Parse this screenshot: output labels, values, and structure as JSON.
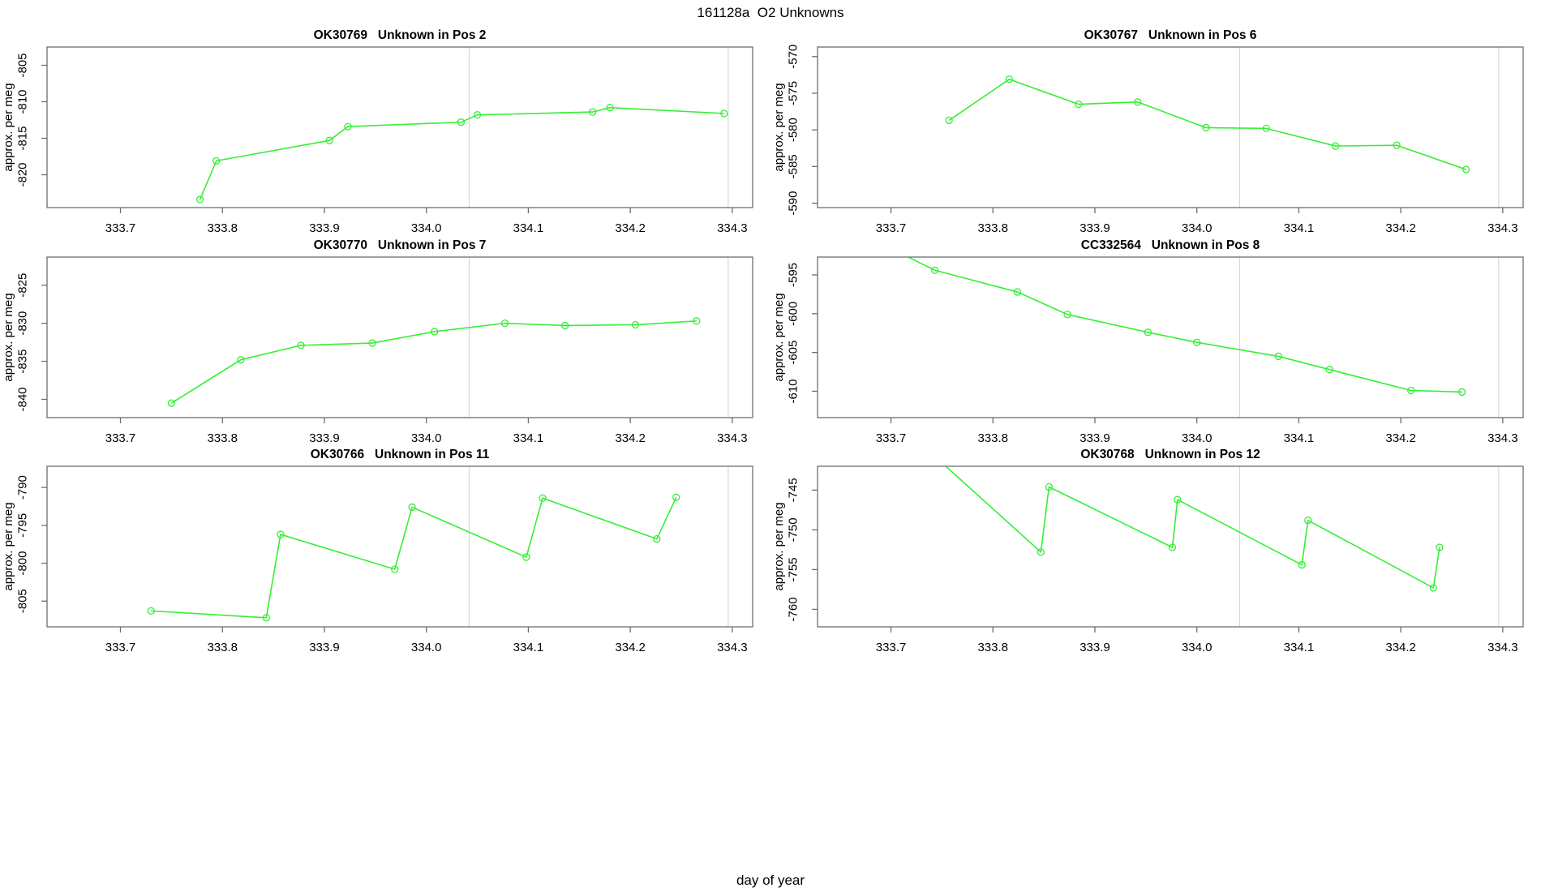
{
  "figure": {
    "title": "161128a  O2 Unknowns",
    "xlabel": "day of year",
    "ylabel": "approx. per meg",
    "line_color": "#35ef35",
    "ref_line_color": "#d6d6d6",
    "axis_color": "#6e6e6e",
    "text_color": "#000000",
    "ref_lines_x": [
      334.042,
      334.296
    ]
  },
  "chart_data": [
    {
      "type": "line",
      "title": "OK30769   Unknown in Pos 2",
      "sample_id": "OK30769",
      "position_label": "Unknown in Pos 2",
      "ylabel": "approx. per meg",
      "xlim": [
        333.628,
        334.32
      ],
      "ylim": [
        -824.5,
        -802.5
      ],
      "xtick_labels": [
        "333.7",
        "333.8",
        "333.9",
        "334.0",
        "334.1",
        "334.2",
        "334.3"
      ],
      "xtick_values": [
        333.7,
        333.8,
        333.9,
        334.0,
        334.1,
        334.2,
        334.3
      ],
      "ytick_values": [
        -820,
        -815,
        -810,
        -805
      ],
      "x": [
        333.778,
        333.794,
        333.905,
        333.923,
        334.034,
        334.05,
        334.163,
        334.18,
        334.292
      ],
      "y": [
        -823.4,
        -818.1,
        -815.3,
        -813.4,
        -812.8,
        -811.8,
        -811.4,
        -810.8,
        -811.6
      ]
    },
    {
      "type": "line",
      "title": "OK30767   Unknown in Pos 6",
      "sample_id": "OK30767",
      "position_label": "Unknown in Pos 6",
      "ylabel": "approx. per meg",
      "xlim": [
        333.628,
        334.32
      ],
      "ylim": [
        -590.6,
        -568.7
      ],
      "xtick_labels": [
        "333.7",
        "333.8",
        "333.9",
        "334.0",
        "334.1",
        "334.2",
        "334.3"
      ],
      "xtick_values": [
        333.7,
        333.8,
        333.9,
        334.0,
        334.1,
        334.2,
        334.3
      ],
      "ytick_values": [
        -590,
        -585,
        -580,
        -575,
        -570
      ],
      "x": [
        333.757,
        333.816,
        333.884,
        333.942,
        334.009,
        334.068,
        334.136,
        334.196,
        334.264
      ],
      "y": [
        -578.7,
        -573.1,
        -576.5,
        -576.2,
        -579.7,
        -579.8,
        -582.2,
        -582.1,
        -585.4
      ]
    },
    {
      "type": "line",
      "title": "OK30770   Unknown in Pos 7",
      "sample_id": "OK30770",
      "position_label": "Unknown in Pos 7",
      "ylabel": "approx. per meg",
      "xlim": [
        333.628,
        334.32
      ],
      "ylim": [
        -842.4,
        -821.3
      ],
      "xtick_labels": [
        "333.7",
        "333.8",
        "333.9",
        "334.0",
        "334.1",
        "334.2",
        "334.3"
      ],
      "xtick_values": [
        333.7,
        333.8,
        333.9,
        334.0,
        334.1,
        334.2,
        334.3
      ],
      "ytick_values": [
        -840,
        -835,
        -830,
        -825
      ],
      "x": [
        333.75,
        333.818,
        333.877,
        333.947,
        334.008,
        334.077,
        334.136,
        334.205,
        334.265
      ],
      "y": [
        -840.5,
        -834.8,
        -832.9,
        -832.6,
        -831.1,
        -830.0,
        -830.3,
        -830.2,
        -829.7
      ]
    },
    {
      "type": "line",
      "title": "CC332564   Unknown in Pos 8",
      "sample_id": "CC332564",
      "position_label": "Unknown in Pos 8",
      "ylabel": "approx. per meg",
      "xlim": [
        333.628,
        334.32
      ],
      "ylim": [
        -613.4,
        -592.7
      ],
      "xtick_labels": [
        "333.7",
        "333.8",
        "333.9",
        "334.0",
        "334.1",
        "334.2",
        "334.3"
      ],
      "xtick_values": [
        333.7,
        333.8,
        333.9,
        334.0,
        334.1,
        334.2,
        334.3
      ],
      "ytick_values": [
        -610,
        -605,
        -600,
        -595
      ],
      "x": [
        333.7,
        333.743,
        333.824,
        333.873,
        333.952,
        334.0,
        334.08,
        334.13,
        334.21,
        334.26
      ],
      "y": [
        -591.6,
        -594.4,
        -597.2,
        -600.1,
        -602.4,
        -603.7,
        -605.5,
        -607.2,
        -609.9,
        -610.1
      ]
    },
    {
      "type": "line",
      "title": "OK30766   Unknown in Pos 11",
      "sample_id": "OK30766",
      "position_label": "Unknown in Pos 11",
      "ylabel": "approx. per meg",
      "xlim": [
        333.628,
        334.32
      ],
      "ylim": [
        -808.4,
        -787.2
      ],
      "xtick_labels": [
        "333.7",
        "333.8",
        "333.9",
        "334.0",
        "334.1",
        "334.2",
        "334.3"
      ],
      "xtick_values": [
        333.7,
        333.8,
        333.9,
        334.0,
        334.1,
        334.2,
        334.3
      ],
      "ytick_values": [
        -805,
        -800,
        -795,
        -790
      ],
      "x": [
        333.73,
        333.843,
        333.857,
        333.969,
        333.986,
        334.098,
        334.114,
        334.226,
        334.245
      ],
      "y": [
        -806.3,
        -807.2,
        -796.2,
        -800.8,
        -792.6,
        -799.2,
        -791.4,
        -796.8,
        -791.3
      ]
    },
    {
      "type": "line",
      "title": "OK30768   Unknown in Pos 12",
      "sample_id": "OK30768",
      "position_label": "Unknown in Pos 12",
      "ylabel": "approx. per meg",
      "xlim": [
        333.628,
        334.32
      ],
      "ylim": [
        -762.2,
        -742.0
      ],
      "xtick_labels": [
        "333.7",
        "333.8",
        "333.9",
        "334.0",
        "334.1",
        "334.2",
        "334.3"
      ],
      "xtick_values": [
        333.7,
        333.8,
        333.9,
        334.0,
        334.1,
        334.2,
        334.3
      ],
      "ytick_values": [
        -760,
        -755,
        -750,
        -745
      ],
      "x": [
        333.74,
        333.847,
        333.855,
        333.976,
        333.981,
        334.103,
        334.109,
        334.232,
        334.238
      ],
      "y": [
        -740.4,
        -752.8,
        -744.6,
        -752.2,
        -746.2,
        -754.4,
        -748.8,
        -757.3,
        -752.2
      ]
    }
  ]
}
